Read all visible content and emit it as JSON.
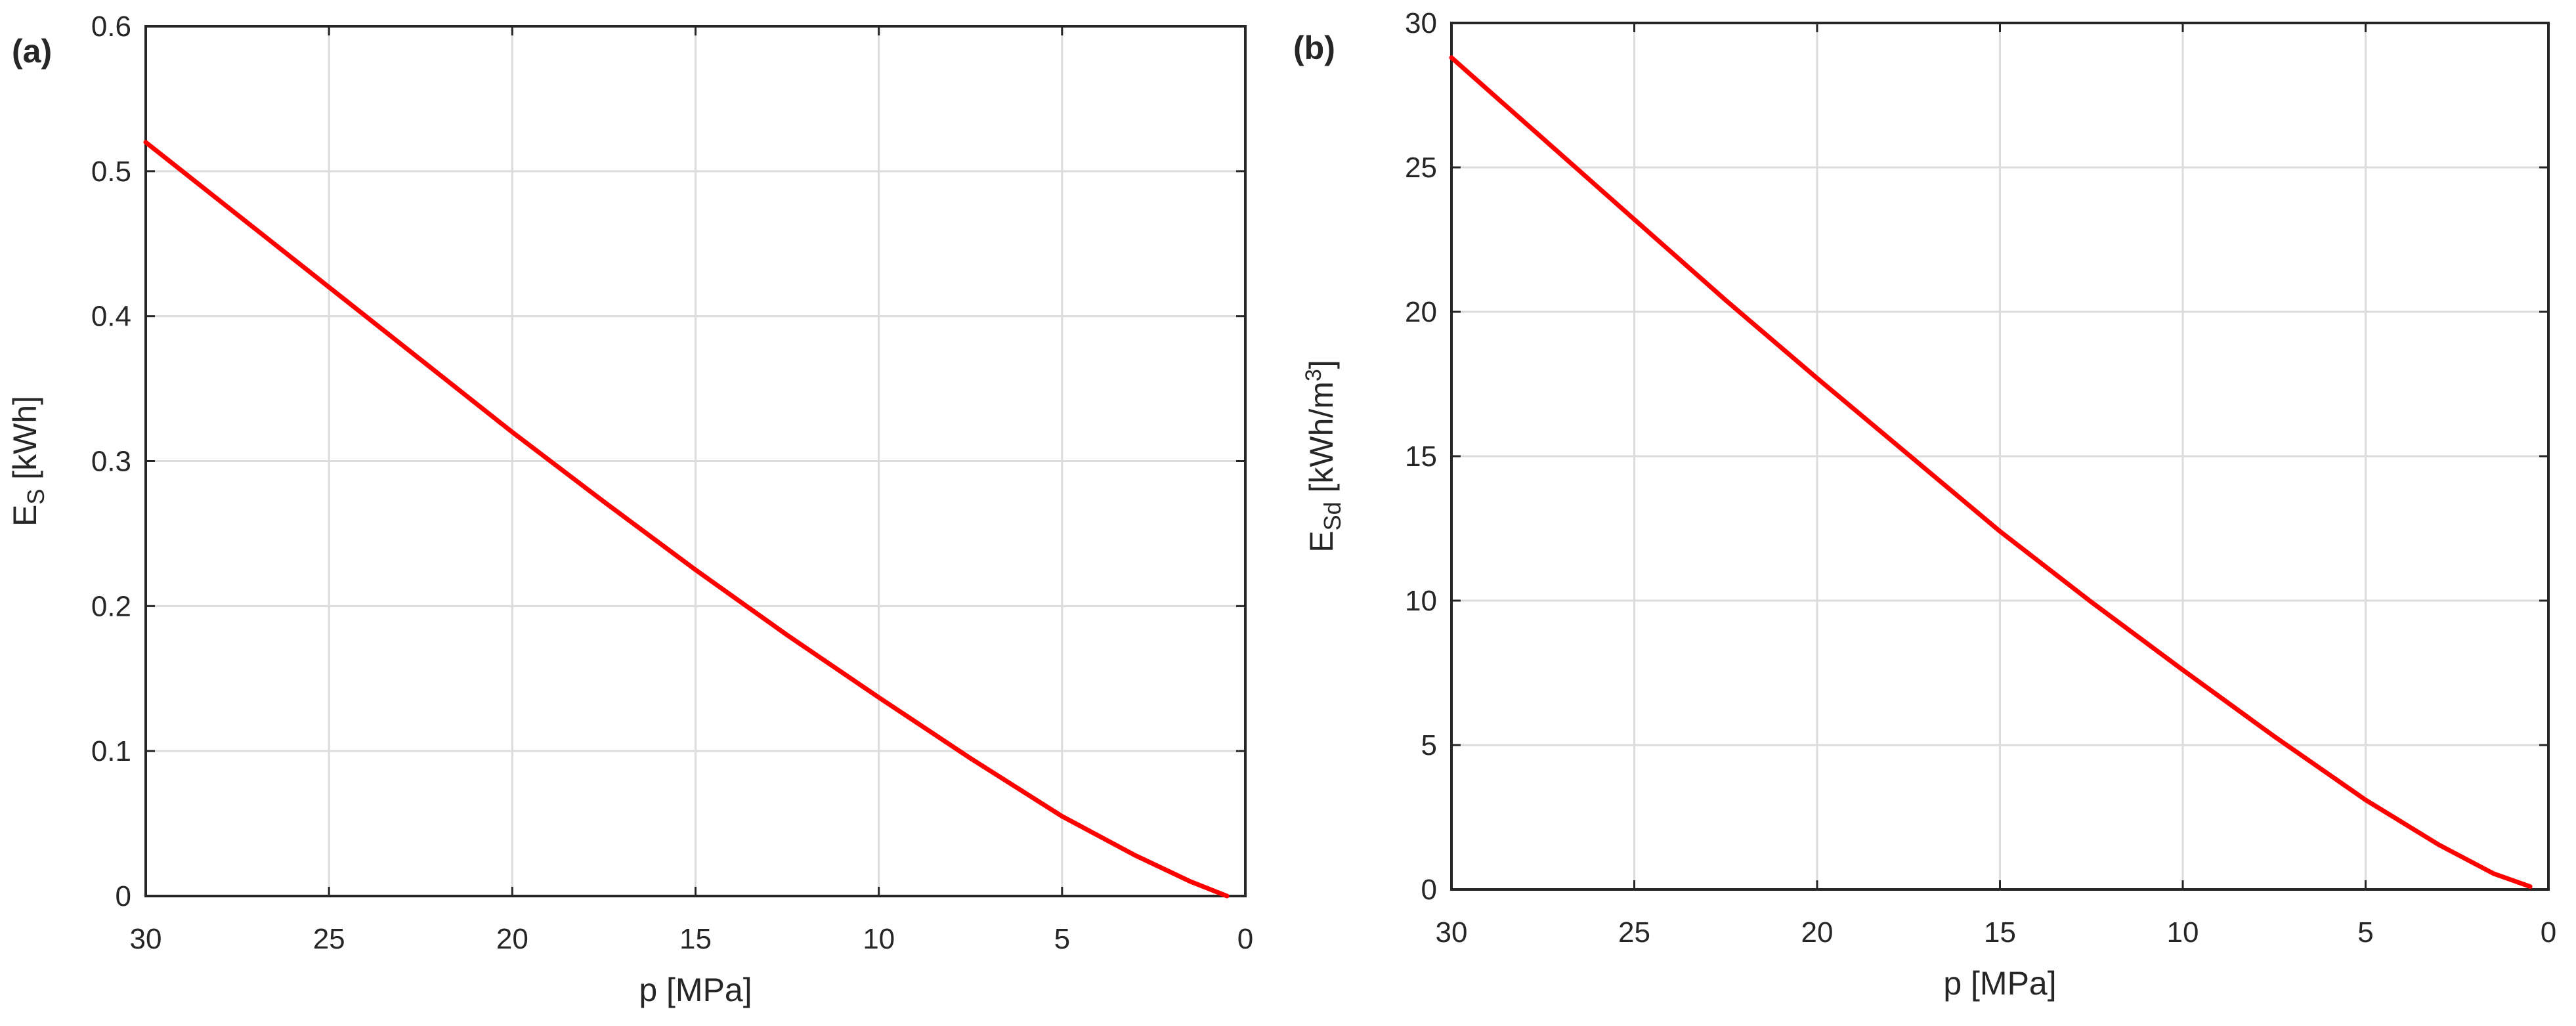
{
  "chart_data": [
    {
      "type": "line",
      "panel_label": "(a)",
      "xlabel": "p [MPa]",
      "ylabel": {
        "base": "E",
        "sub": "S",
        "unit": " [kWh]",
        "sup": ""
      },
      "xlim": [
        30,
        0
      ],
      "ylim": [
        0,
        0.6
      ],
      "x_reversed": true,
      "xticks": [
        30,
        25,
        20,
        15,
        10,
        5,
        0
      ],
      "xtick_labels": [
        "30",
        "25",
        "20",
        "15",
        "10",
        "5",
        "0"
      ],
      "yticks": [
        0,
        0.1,
        0.2,
        0.3,
        0.4,
        0.5,
        0.6
      ],
      "ytick_labels": [
        "0",
        "0.1",
        "0.2",
        "0.3",
        "0.4",
        "0.5",
        "0.6"
      ],
      "grid": true,
      "series": [
        {
          "color": "#ff0000",
          "x": [
            30,
            27.5,
            25,
            22.5,
            20,
            17.5,
            15,
            12.5,
            10,
            7.5,
            5,
            3,
            1.5,
            0.5
          ],
          "y": [
            0.52,
            0.47,
            0.42,
            0.37,
            0.32,
            0.272,
            0.225,
            0.18,
            0.137,
            0.095,
            0.055,
            0.028,
            0.01,
            0.0
          ]
        }
      ]
    },
    {
      "type": "line",
      "panel_label": "(b)",
      "xlabel": "p [MPa]",
      "ylabel": {
        "base": "E",
        "sub": "Sd",
        "unit": " [kWh/m",
        "sup": "3",
        "close": "]"
      },
      "xlim": [
        30,
        0
      ],
      "ylim": [
        0,
        30
      ],
      "x_reversed": true,
      "xticks": [
        30,
        25,
        20,
        15,
        10,
        5,
        0
      ],
      "xtick_labels": [
        "30",
        "25",
        "20",
        "15",
        "10",
        "5",
        "0"
      ],
      "yticks": [
        0,
        5,
        10,
        15,
        20,
        25,
        30
      ],
      "ytick_labels": [
        "0",
        "5",
        "10",
        "15",
        "20",
        "25",
        "30"
      ],
      "grid": true,
      "series": [
        {
          "color": "#ff0000",
          "x": [
            30,
            27.5,
            25,
            22.5,
            20,
            17.5,
            15,
            12.5,
            10,
            7.5,
            5,
            3,
            1.5,
            0.5
          ],
          "y": [
            28.8,
            26.0,
            23.2,
            20.4,
            17.7,
            15.05,
            12.4,
            9.95,
            7.6,
            5.3,
            3.1,
            1.55,
            0.55,
            0.1
          ]
        }
      ]
    }
  ]
}
